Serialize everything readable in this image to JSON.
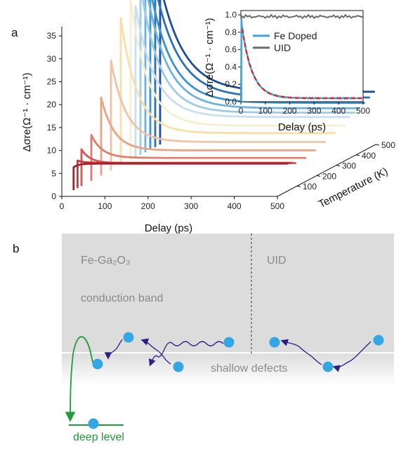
{
  "panel_a_label": "a",
  "panel_b_label": "b",
  "chart_data": [
    {
      "type": "line",
      "name": "main-3d",
      "xlabel": "Delay (ps)",
      "ylabel": "Δσre(Ω⁻¹ · cm⁻¹)",
      "zlabel": "Temperature (K)",
      "x_ticks": [
        0,
        100,
        200,
        300,
        400,
        500
      ],
      "y_ticks": [
        0,
        5,
        10,
        15,
        20,
        25,
        30,
        35
      ],
      "z_ticks": [
        100,
        200,
        300,
        400,
        500
      ],
      "xlim": [
        0,
        500
      ],
      "ylim": [
        0,
        37
      ],
      "zlim": [
        0,
        500
      ],
      "series": [
        {
          "temp": 500,
          "peak": 35.0,
          "plateau": 11.5,
          "tau": 55,
          "color": "#1f4e96"
        },
        {
          "temp": 475,
          "peak": 35.0,
          "plateau": 10.8,
          "tau": 55,
          "color": "#2a72b8"
        },
        {
          "temp": 450,
          "peak": 35.0,
          "plateau": 10.2,
          "tau": 50,
          "color": "#3a93cc"
        },
        {
          "temp": 425,
          "peak": 37.0,
          "plateau": 9.6,
          "tau": 48,
          "color": "#6cb4de"
        },
        {
          "temp": 400,
          "peak": 37.0,
          "plateau": 9.2,
          "tau": 45,
          "color": "#9ccbe6"
        },
        {
          "temp": 375,
          "peak": 33.0,
          "plateau": 8.8,
          "tau": 45,
          "color": "#c9def0"
        },
        {
          "temp": 350,
          "peak": 35.0,
          "plateau": 7.5,
          "tau": 40,
          "color": "#f6eed0"
        },
        {
          "temp": 300,
          "peak": 32.0,
          "plateau": 7.0,
          "tau": 38,
          "color": "#f7dfa8"
        },
        {
          "temp": 250,
          "peak": 24.0,
          "plateau": 6.2,
          "tau": 35,
          "color": "#f3c2a5"
        },
        {
          "temp": 200,
          "peak": 17.0,
          "plateau": 5.5,
          "tau": 30,
          "color": "#eba286"
        },
        {
          "temp": 150,
          "peak": 10.0,
          "plateau": 5.0,
          "tau": 25,
          "color": "#e07c6a"
        },
        {
          "temp": 100,
          "peak": 8.0,
          "plateau": 5.0,
          "tau": 20,
          "color": "#d65651"
        },
        {
          "temp": 80,
          "peak": 6.0,
          "plateau": 5.5,
          "tau": 15,
          "color": "#c63a3a"
        },
        {
          "temp": 60,
          "peak": 5.0,
          "plateau": 5.8,
          "tau": 12,
          "color": "#a81e2b"
        }
      ]
    },
    {
      "type": "line",
      "name": "inset",
      "xlabel": "Delay (ps)",
      "ylabel": "Δσre(Ω⁻¹ · cm⁻¹)",
      "xlim": [
        0,
        500
      ],
      "ylim": [
        0,
        1.05
      ],
      "x_ticks": [
        0,
        100,
        200,
        300,
        400,
        500
      ],
      "y_ticks": [
        0.0,
        0.2,
        0.4,
        0.6,
        0.8,
        1.0
      ],
      "legend": "top-right",
      "series": [
        {
          "name": "Fe Doped",
          "color": "#3ea4dc",
          "tau": 42,
          "offset": 0.04
        },
        {
          "name": "UID",
          "color": "#6b6b6b",
          "level": 0.98
        }
      ]
    }
  ],
  "diagram": {
    "left_region_label": "Fe-Ga₂O₃",
    "right_region_label": "UID",
    "conduction_band_label": "conduction band",
    "shallow_defects_label": "shallow defects",
    "deep_level_label": "deep level"
  }
}
